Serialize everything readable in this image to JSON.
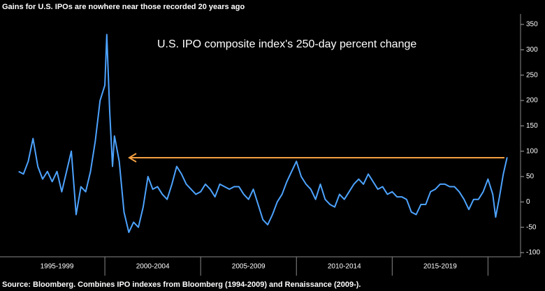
{
  "chart_data": {
    "type": "line",
    "title": "Gains for U.S. IPOs are nowhere near those recorded 20 years ago",
    "annotation": "U.S. IPO composite index's 250-day percent change",
    "source": "Source: Bloomberg. Combines IPO indexes from Bloomberg (1994-2009) and Renaissance (2009-).",
    "xlim": [
      1995,
      2021.7
    ],
    "xticks": [
      2000,
      2005,
      2010,
      2015,
      2020
    ],
    "period_labels": [
      "1995-1999",
      "2000-2004",
      "2005-2009",
      "2010-2014",
      "2015-2019"
    ],
    "ylim": [
      -100,
      350
    ],
    "yticks": [
      -100,
      -50,
      0,
      50,
      100,
      150,
      200,
      250,
      300,
      350
    ],
    "y_axis_side": "right",
    "grid": false,
    "series": [
      {
        "name": "U.S. IPO composite index 250-day percent change",
        "color": "#4da3ff",
        "x": [
          1995.5,
          1995.75,
          1996.0,
          1996.25,
          1996.5,
          1996.75,
          1997.0,
          1997.25,
          1997.5,
          1997.75,
          1998.0,
          1998.25,
          1998.5,
          1998.75,
          1999.0,
          1999.25,
          1999.5,
          1999.75,
          2000.0,
          2000.1,
          2000.25,
          2000.4,
          2000.5,
          2000.75,
          2001.0,
          2001.25,
          2001.5,
          2001.75,
          2002.0,
          2002.25,
          2002.5,
          2002.75,
          2003.0,
          2003.25,
          2003.5,
          2003.75,
          2004.0,
          2004.25,
          2004.5,
          2004.75,
          2005.0,
          2005.25,
          2005.5,
          2005.75,
          2006.0,
          2006.25,
          2006.5,
          2006.75,
          2007.0,
          2007.25,
          2007.5,
          2007.75,
          2008.0,
          2008.25,
          2008.5,
          2008.75,
          2009.0,
          2009.25,
          2009.5,
          2009.75,
          2010.0,
          2010.25,
          2010.5,
          2010.75,
          2011.0,
          2011.25,
          2011.5,
          2011.75,
          2012.0,
          2012.25,
          2012.5,
          2012.75,
          2013.0,
          2013.25,
          2013.5,
          2013.75,
          2014.0,
          2014.25,
          2014.5,
          2014.75,
          2015.0,
          2015.25,
          2015.5,
          2015.75,
          2016.0,
          2016.25,
          2016.5,
          2016.75,
          2017.0,
          2017.25,
          2017.5,
          2017.75,
          2018.0,
          2018.25,
          2018.5,
          2018.75,
          2019.0,
          2019.25,
          2019.5,
          2019.75,
          2020.0,
          2020.25,
          2020.4,
          2020.6,
          2020.8,
          2021.0
        ],
        "values": [
          60,
          55,
          80,
          125,
          70,
          45,
          60,
          40,
          60,
          20,
          60,
          100,
          -25,
          30,
          20,
          60,
          120,
          200,
          230,
          330,
          180,
          70,
          130,
          80,
          -20,
          -60,
          -40,
          -50,
          -10,
          50,
          25,
          30,
          15,
          5,
          35,
          70,
          55,
          35,
          25,
          15,
          20,
          35,
          25,
          10,
          35,
          30,
          25,
          30,
          30,
          15,
          5,
          25,
          -5,
          -35,
          -45,
          -25,
          0,
          15,
          40,
          60,
          80,
          50,
          35,
          25,
          5,
          35,
          5,
          -5,
          -10,
          15,
          5,
          20,
          35,
          45,
          35,
          55,
          40,
          25,
          30,
          15,
          20,
          10,
          10,
          5,
          -20,
          -25,
          -5,
          -5,
          20,
          25,
          35,
          35,
          30,
          30,
          20,
          5,
          -15,
          5,
          5,
          20,
          45,
          15,
          -30,
          10,
          55,
          88
        ]
      }
    ]
  }
}
